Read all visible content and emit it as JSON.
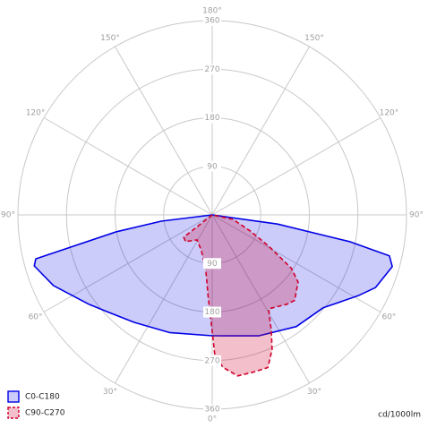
{
  "chart_data": {
    "type": "polar",
    "rlim": [
      0,
      360
    ],
    "rticks": [
      90,
      180,
      270,
      360
    ],
    "thetaticks": [
      {
        "value": -150,
        "label": "150°"
      },
      {
        "value": -120,
        "label": "120°"
      },
      {
        "value": -90,
        "label": "90°"
      },
      {
        "value": -60,
        "label": "60°"
      },
      {
        "value": -30,
        "label": "30°"
      },
      {
        "value": 0,
        "label": "0°"
      },
      {
        "value": 30,
        "label": "30°"
      },
      {
        "value": 60,
        "label": "60°"
      },
      {
        "value": 90,
        "label": "90°"
      },
      {
        "value": 120,
        "label": "120°"
      },
      {
        "value": 150,
        "label": "150°"
      },
      {
        "value": 180,
        "label": "180°"
      }
    ],
    "unit": "cd/1000lm",
    "legend": "bottom-left",
    "series": [
      {
        "name": "C0-C180",
        "color": "#0000e6",
        "dashed": false,
        "theta": [
          -90,
          -83,
          -80,
          -76,
          -74,
          -66,
          -54,
          -47,
          -36,
          -20,
          0,
          21,
          37,
          50,
          61,
          66,
          74,
          77,
          79,
          82,
          90
        ],
        "values": [
          0,
          95,
          180,
          337,
          343,
          322,
          282,
          264,
          246,
          232,
          224,
          240,
          259,
          268,
          309,
          331,
          347,
          337,
          259,
          122,
          0
        ]
      },
      {
        "name": "C90-C270",
        "color": "#d0002a",
        "dashed": true,
        "theta": [
          -60,
          -52,
          -45,
          -31,
          -17,
          -7,
          -3,
          0,
          1,
          4,
          9,
          15,
          20,
          24,
          27,
          31,
          40,
          44,
          52,
          56,
          61,
          67,
          78,
          90
        ],
        "values": [
          0,
          67,
          70,
          54,
          69,
          100,
          149,
          216,
          257,
          283,
          302,
          301,
          301,
          273,
          241,
          203,
          216,
          220,
          202,
          177,
          120,
          77,
          39,
          0
        ]
      }
    ]
  }
}
